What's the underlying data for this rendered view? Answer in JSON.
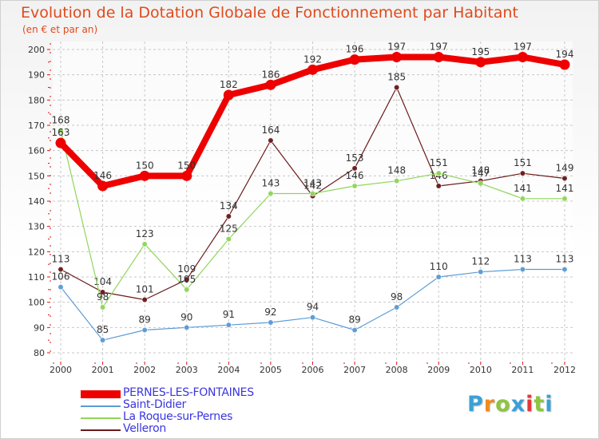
{
  "chart_data": {
    "type": "line",
    "title": "Evolution de la Dotation Globale de Fonctionnement par Habitant",
    "subtitle": "(en € et par an)",
    "xlabel": "",
    "ylabel": "",
    "categories": [
      "2000",
      "2001",
      "2002",
      "2003",
      "2004",
      "2005",
      "2006",
      "2007",
      "2008",
      "2009",
      "2010",
      "2011",
      "2012"
    ],
    "ylim": [
      80,
      200
    ],
    "yticks": [
      80,
      90,
      100,
      110,
      120,
      130,
      140,
      150,
      160,
      170,
      180,
      190,
      200
    ],
    "grid": true,
    "legend_position": "bottom-left",
    "series": [
      {
        "name": "PERNES-LES-FONTAINES",
        "color": "#ee0000",
        "values": [
          163,
          146,
          150,
          150,
          182,
          186,
          192,
          196,
          197,
          197,
          195,
          197,
          194
        ]
      },
      {
        "name": "Saint-Didier",
        "color": "#5b9bd5",
        "values": [
          106,
          85,
          89,
          90,
          91,
          92,
          94,
          89,
          98,
          110,
          112,
          113,
          113
        ]
      },
      {
        "name": "La Roque-sur-Pernes",
        "color": "#8fd65a",
        "values": [
          168,
          98,
          123,
          105,
          125,
          143,
          143,
          146,
          148,
          151,
          147,
          141,
          141
        ]
      },
      {
        "name": "Velleron",
        "color": "#6b1a1a",
        "values": [
          113,
          104,
          101,
          109,
          134,
          164,
          142,
          153,
          185,
          146,
          148,
          151,
          149
        ]
      }
    ]
  },
  "brand": {
    "letters": [
      "P",
      "r",
      "o",
      "x",
      "i",
      "t",
      "i"
    ],
    "colors": [
      "#3aa0d8",
      "#f08a1c",
      "#8cc63e",
      "#3aa0d8",
      "#e2383a",
      "#8cc63e",
      "#3aa0d8"
    ]
  }
}
